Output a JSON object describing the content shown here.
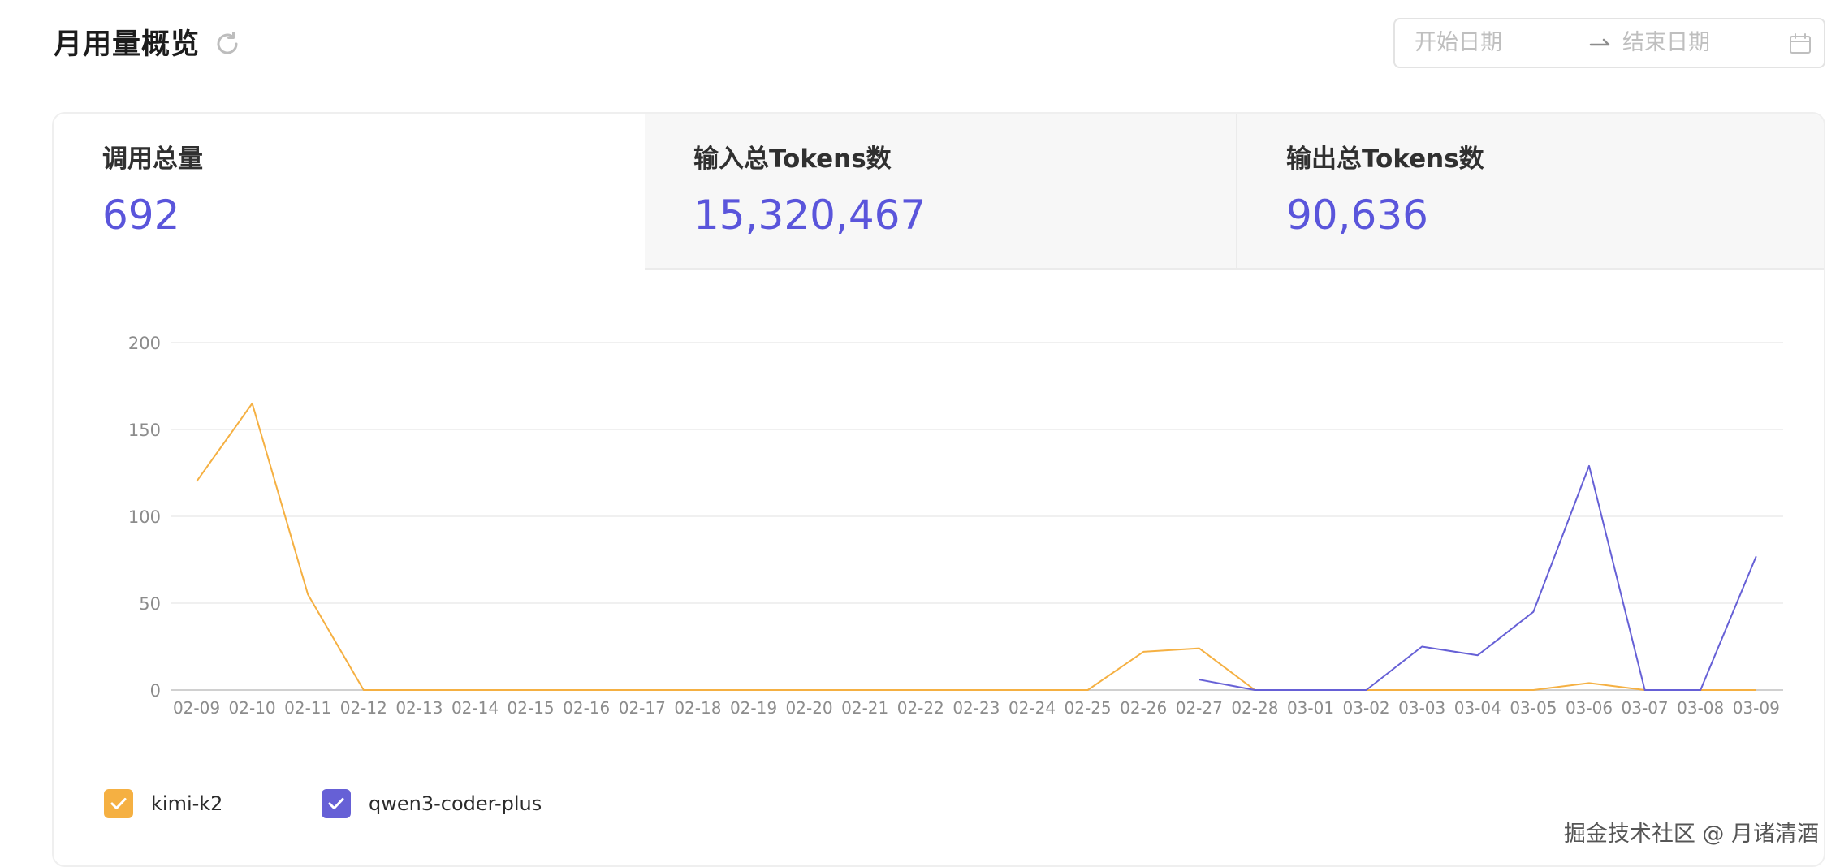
{
  "header": {
    "title": "月用量概览",
    "refresh_icon": "refresh-icon"
  },
  "date_range": {
    "start_placeholder": "开始日期",
    "end_placeholder": "结束日期",
    "arrow_icon": "arrow-right-icon",
    "calendar_icon": "calendar-icon"
  },
  "stats": [
    {
      "label": "调用总量",
      "value": "692"
    },
    {
      "label": "输入总Tokens数",
      "value": "15,320,467"
    },
    {
      "label": "输出总Tokens数",
      "value": "90,636"
    }
  ],
  "colors": {
    "accent": "#5a55db",
    "kimi": "#f5b042",
    "qwen": "#6660d6"
  },
  "chart_data": {
    "type": "line",
    "x": [
      "02-09",
      "02-10",
      "02-11",
      "02-12",
      "02-13",
      "02-14",
      "02-15",
      "02-16",
      "02-17",
      "02-18",
      "02-19",
      "02-20",
      "02-21",
      "02-22",
      "02-23",
      "02-24",
      "02-25",
      "02-26",
      "02-27",
      "02-28",
      "03-01",
      "03-02",
      "03-03",
      "03-04",
      "03-05",
      "03-06",
      "03-07",
      "03-08",
      "03-09"
    ],
    "yticks": [
      0,
      50,
      100,
      150,
      200
    ],
    "ylim": [
      0,
      200
    ],
    "grid": true,
    "legend_position": "bottom-left",
    "series": [
      {
        "name": "kimi-k2",
        "color": "#f5b042",
        "values": [
          120,
          165,
          55,
          0,
          0,
          0,
          0,
          0,
          0,
          0,
          0,
          0,
          0,
          0,
          0,
          0,
          0,
          22,
          24,
          0,
          0,
          0,
          0,
          0,
          0,
          4,
          0,
          0,
          0
        ]
      },
      {
        "name": "qwen3-coder-plus",
        "color": "#6660d6",
        "values": [
          null,
          null,
          null,
          null,
          null,
          null,
          null,
          null,
          null,
          null,
          null,
          null,
          null,
          null,
          null,
          null,
          null,
          null,
          6,
          0,
          0,
          0,
          25,
          20,
          45,
          129,
          0,
          0,
          77
        ]
      }
    ]
  },
  "legend": [
    {
      "label": "kimi-k2",
      "color": "#f5b042",
      "checked": true
    },
    {
      "label": "qwen3-coder-plus",
      "color": "#6660d6",
      "checked": true
    }
  ],
  "watermark": "掘金技术社区 @ 月诸清酒"
}
